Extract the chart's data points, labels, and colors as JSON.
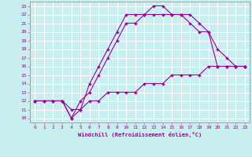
{
  "xlabel": "Windchill (Refroidissement éolien,°C)",
  "bg_color": "#c8eef0",
  "line_color": "#990099",
  "grid_color": "#ffffff",
  "spine_color": "#888888",
  "xlim": [
    -0.5,
    23.5
  ],
  "ylim": [
    9.5,
    23.5
  ],
  "xticks": [
    0,
    1,
    2,
    3,
    4,
    5,
    6,
    7,
    8,
    9,
    10,
    11,
    12,
    13,
    14,
    15,
    16,
    17,
    18,
    19,
    20,
    21,
    22,
    23
  ],
  "yticks": [
    10,
    11,
    12,
    13,
    14,
    15,
    16,
    17,
    18,
    19,
    20,
    21,
    22,
    23
  ],
  "line1_x": [
    0,
    1,
    2,
    3,
    4,
    5,
    6,
    7,
    8,
    9,
    10,
    11,
    12,
    13,
    14,
    15,
    16,
    17,
    18,
    19,
    20,
    21,
    22,
    23
  ],
  "line1_y": [
    12,
    12,
    12,
    12,
    10,
    11,
    14,
    16,
    18,
    20,
    22,
    22,
    22,
    23,
    23,
    22,
    22,
    21,
    20,
    20,
    16,
    16,
    16,
    16
  ],
  "line2_x": [
    0,
    3,
    4,
    5,
    6,
    7,
    8,
    9,
    10,
    11,
    12,
    13,
    14,
    15,
    16,
    17,
    18,
    19,
    20,
    21,
    22,
    23
  ],
  "line2_y": [
    12,
    12,
    10,
    12,
    13,
    15,
    17,
    19,
    21,
    21,
    22,
    22,
    22,
    22,
    22,
    22,
    21,
    20,
    18,
    17,
    16,
    16
  ],
  "line3_x": [
    0,
    1,
    2,
    3,
    4,
    5,
    6,
    7,
    8,
    9,
    10,
    11,
    12,
    13,
    14,
    15,
    16,
    17,
    18,
    19,
    20,
    21,
    22,
    23
  ],
  "line3_y": [
    12,
    12,
    12,
    12,
    11,
    11,
    12,
    12,
    13,
    13,
    13,
    13,
    14,
    14,
    14,
    15,
    15,
    15,
    15,
    16,
    16,
    16,
    16,
    16
  ]
}
